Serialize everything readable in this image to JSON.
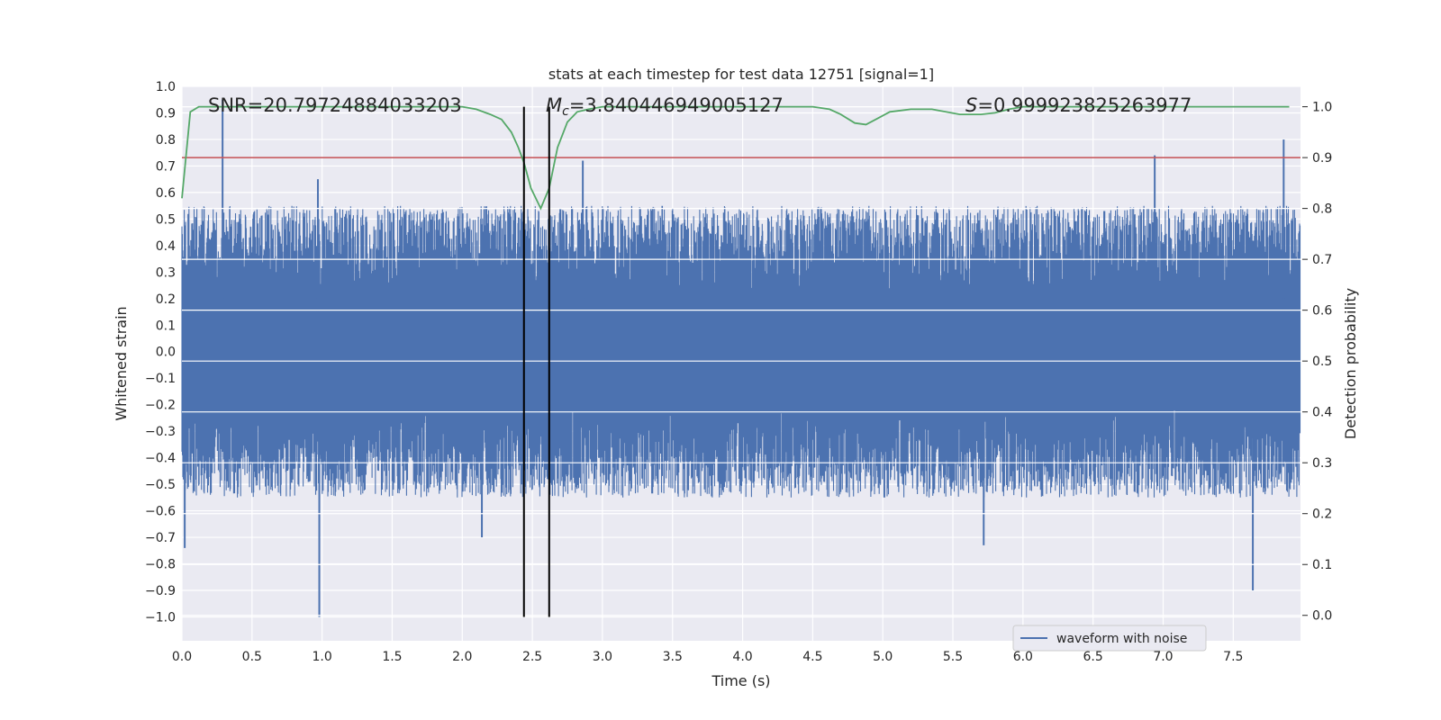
{
  "chart_data": {
    "type": "line",
    "title": "stats at each timestep for test data 12751 [signal=1]",
    "xlabel": "Time (s)",
    "ylabel_left": "Whitened strain",
    "ylabel_right": "Detection probability",
    "xlim": [
      0,
      7.98
    ],
    "ylim_left": [
      -1.09,
      1.0
    ],
    "ylim_right": [
      -0.05,
      1.04
    ],
    "x_ticks": [
      "0.0",
      "0.5",
      "1.0",
      "1.5",
      "2.0",
      "2.5",
      "3.0",
      "3.5",
      "4.0",
      "4.5",
      "5.0",
      "5.5",
      "6.0",
      "6.5",
      "7.0",
      "7.5"
    ],
    "x_tick_values": [
      0,
      0.5,
      1,
      1.5,
      2,
      2.5,
      3,
      3.5,
      4,
      4.5,
      5,
      5.5,
      6,
      6.5,
      7,
      7.5
    ],
    "y_left_ticks": [
      "1.0",
      "0.9",
      "0.8",
      "0.7",
      "0.6",
      "0.5",
      "0.4",
      "0.3",
      "0.2",
      "0.1",
      "0.0",
      "−0.1",
      "−0.2",
      "−0.3",
      "−0.4",
      "−0.5",
      "−0.6",
      "−0.7",
      "−0.8",
      "−0.9",
      "−1.0"
    ],
    "y_left_tick_values": [
      1.0,
      0.9,
      0.8,
      0.7,
      0.6,
      0.5,
      0.4,
      0.3,
      0.2,
      0.1,
      0.0,
      -0.1,
      -0.2,
      -0.3,
      -0.4,
      -0.5,
      -0.6,
      -0.7,
      -0.8,
      -0.9,
      -1.0
    ],
    "y_right_ticks": [
      "1.0",
      "0.9",
      "0.8",
      "0.7",
      "0.6",
      "0.5",
      "0.4",
      "0.3",
      "0.2",
      "0.1",
      "0.0"
    ],
    "y_right_tick_values": [
      1.0,
      0.9,
      0.8,
      0.7,
      0.6,
      0.5,
      0.4,
      0.3,
      0.2,
      0.1,
      0.0
    ],
    "annotations": {
      "snr": "SNR=20.79724884033203",
      "mc": "M",
      "mc_sub": "c",
      "mc_value": "=3.840446949005127",
      "s": "S",
      "s_value": "=0.999923825263977"
    },
    "series": [
      {
        "name": "waveform with noise",
        "axis": "left",
        "color": "#4c72b0",
        "style": "dense noisy strain signal",
        "envelope_upper_approx": 0.55,
        "envelope_lower_approx": -0.55,
        "spikes": [
          {
            "x": 0.02,
            "y": -0.74
          },
          {
            "x": 0.29,
            "y": 0.95
          },
          {
            "x": 0.98,
            "y": -1.0
          },
          {
            "x": 0.97,
            "y": 0.65
          },
          {
            "x": 2.14,
            "y": -0.7
          },
          {
            "x": 2.86,
            "y": 0.72
          },
          {
            "x": 5.72,
            "y": -0.73
          },
          {
            "x": 6.94,
            "y": 0.74
          },
          {
            "x": 7.64,
            "y": -0.9
          },
          {
            "x": 7.86,
            "y": 0.8
          }
        ]
      },
      {
        "name": "detection probability",
        "axis": "right",
        "color": "#55a868",
        "x": [
          0.0,
          0.06,
          0.12,
          0.2,
          0.5,
          1.0,
          1.5,
          1.8,
          2.0,
          2.1,
          2.2,
          2.28,
          2.35,
          2.4,
          2.44,
          2.49,
          2.56,
          2.62,
          2.68,
          2.75,
          2.82,
          2.9,
          3.0,
          3.5,
          4.0,
          4.5,
          4.62,
          4.7,
          4.8,
          4.88,
          4.95,
          5.05,
          5.2,
          5.35,
          5.45,
          5.55,
          5.7,
          5.8,
          5.9,
          6.0,
          6.5,
          7.0,
          7.5,
          7.9
        ],
        "y": [
          0.82,
          0.99,
          1.0,
          1.0,
          1.0,
          1.0,
          1.0,
          1.0,
          1.0,
          0.995,
          0.985,
          0.975,
          0.95,
          0.92,
          0.89,
          0.84,
          0.8,
          0.84,
          0.92,
          0.97,
          0.99,
          0.995,
          1.0,
          1.0,
          1.0,
          1.0,
          0.995,
          0.985,
          0.968,
          0.965,
          0.975,
          0.99,
          0.995,
          0.995,
          0.99,
          0.985,
          0.985,
          0.988,
          0.995,
          1.0,
          1.0,
          1.0,
          1.0,
          1.0
        ]
      }
    ],
    "threshold_right": 0.9,
    "threshold_color": "#c44e52",
    "vertical_markers_x": [
      2.44,
      2.62
    ],
    "legend": {
      "label": "waveform with noise",
      "placement": "lower-right"
    },
    "grid": true,
    "background_color": "#eaeaf2"
  }
}
